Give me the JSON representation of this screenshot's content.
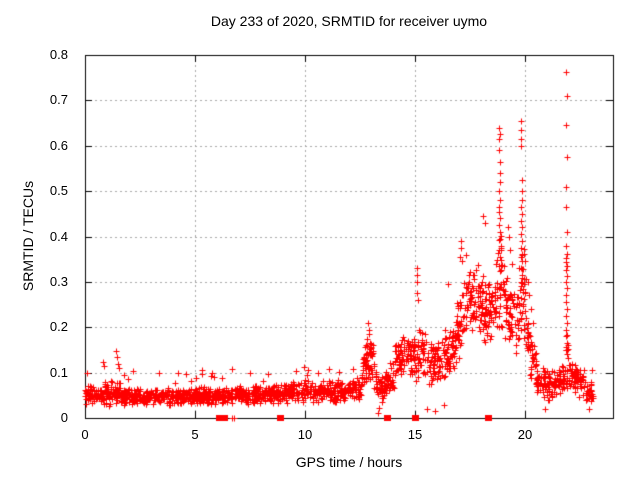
{
  "chart_data": {
    "type": "scatter",
    "title": "Day 233 of 2020, SRMTID for receiver uymo",
    "xlabel": "GPS time / hours",
    "ylabel": "SRMTID / TECUs",
    "xlim": [
      0,
      24
    ],
    "ylim": [
      0,
      0.8
    ],
    "xticks": [
      {
        "value": 0,
        "label": "0"
      },
      {
        "value": 5,
        "label": "5"
      },
      {
        "value": 10,
        "label": "10"
      },
      {
        "value": 15,
        "label": "15"
      },
      {
        "value": 20,
        "label": "20"
      }
    ],
    "yticks": [
      {
        "value": 0.0,
        "label": "0"
      },
      {
        "value": 0.1,
        "label": "0.1"
      },
      {
        "value": 0.2,
        "label": "0.2"
      },
      {
        "value": 0.3,
        "label": "0.3"
      },
      {
        "value": 0.4,
        "label": "0.4"
      },
      {
        "value": 0.5,
        "label": "0.5"
      },
      {
        "value": 0.6,
        "label": "0.6"
      },
      {
        "value": 0.7,
        "label": "0.7"
      },
      {
        "value": 0.8,
        "label": "0.8"
      }
    ],
    "grid": true,
    "legend": "none",
    "marker": {
      "shape": "plus",
      "color": "#ff0000",
      "size": 7
    },
    "grid_color": "#a8a8a8",
    "frame_color": "#000000",
    "text_color": "#000000",
    "seed": 233,
    "band_segments": [
      [
        0.0,
        0.85,
        0.052,
        0.052,
        0.02,
        85
      ],
      [
        0.85,
        1.65,
        0.055,
        0.055,
        0.028,
        85
      ],
      [
        1.65,
        3.0,
        0.048,
        0.045,
        0.018,
        85
      ],
      [
        3.0,
        6.0,
        0.047,
        0.05,
        0.019,
        85
      ],
      [
        6.0,
        9.0,
        0.05,
        0.052,
        0.02,
        85
      ],
      [
        9.0,
        10.4,
        0.055,
        0.06,
        0.023,
        85
      ],
      [
        10.4,
        12.55,
        0.058,
        0.062,
        0.024,
        85
      ],
      [
        12.55,
        12.95,
        0.095,
        0.135,
        0.045,
        90
      ],
      [
        12.95,
        13.25,
        0.135,
        0.09,
        0.045,
        90
      ],
      [
        13.25,
        13.6,
        0.065,
        0.06,
        0.03,
        85
      ],
      [
        13.6,
        14.05,
        0.07,
        0.1,
        0.035,
        85
      ],
      [
        14.05,
        14.55,
        0.125,
        0.15,
        0.05,
        90
      ],
      [
        14.55,
        15.05,
        0.145,
        0.125,
        0.045,
        90
      ],
      [
        15.05,
        15.45,
        0.14,
        0.15,
        0.055,
        90
      ],
      [
        15.45,
        16.15,
        0.13,
        0.125,
        0.05,
        90
      ],
      [
        16.15,
        16.85,
        0.13,
        0.16,
        0.055,
        90
      ],
      [
        16.85,
        17.55,
        0.185,
        0.26,
        0.07,
        92
      ],
      [
        17.55,
        18.35,
        0.27,
        0.25,
        0.085,
        95
      ],
      [
        18.35,
        18.72,
        0.23,
        0.27,
        0.07,
        92
      ],
      [
        18.72,
        19.06,
        0.31,
        0.3,
        0.11,
        100
      ],
      [
        19.06,
        19.62,
        0.25,
        0.2,
        0.075,
        92
      ],
      [
        19.62,
        20.06,
        0.27,
        0.26,
        0.11,
        100
      ],
      [
        20.06,
        20.5,
        0.17,
        0.11,
        0.05,
        88
      ],
      [
        20.5,
        21.2,
        0.085,
        0.07,
        0.032,
        85
      ],
      [
        21.2,
        21.82,
        0.07,
        0.09,
        0.033,
        85
      ],
      [
        21.82,
        21.98,
        0.13,
        0.12,
        0.06,
        95
      ],
      [
        21.98,
        22.75,
        0.09,
        0.078,
        0.034,
        85
      ],
      [
        22.75,
        23.1,
        0.062,
        0.052,
        0.024,
        85
      ]
    ],
    "extra_points": [
      [
        0.1,
        0.1
      ],
      [
        0.82,
        0.124
      ],
      [
        0.87,
        0.114
      ],
      [
        1.42,
        0.148
      ],
      [
        1.46,
        0.134
      ],
      [
        1.51,
        0.12
      ],
      [
        1.56,
        0.11
      ],
      [
        2.2,
        0.104
      ],
      [
        3.35,
        0.1
      ],
      [
        4.6,
        0.098
      ],
      [
        5.3,
        0.105
      ],
      [
        6.7,
        0.108
      ],
      [
        7.5,
        0.1
      ],
      [
        8.3,
        0.098
      ],
      [
        9.6,
        0.104
      ],
      [
        9.95,
        0.112
      ],
      [
        10.15,
        0.106
      ],
      [
        10.6,
        0.1
      ],
      [
        11.1,
        0.108
      ],
      [
        11.55,
        0.102
      ],
      [
        12.2,
        0.108
      ],
      [
        12.78,
        0.16
      ],
      [
        12.82,
        0.175
      ],
      [
        12.86,
        0.21
      ],
      [
        12.89,
        0.195
      ],
      [
        12.92,
        0.185
      ],
      [
        12.96,
        0.165
      ],
      [
        13.0,
        0.155
      ],
      [
        13.3,
        0.012
      ],
      [
        13.38,
        0.022
      ],
      [
        15.07,
        0.33
      ],
      [
        15.09,
        0.315
      ],
      [
        15.11,
        0.3
      ],
      [
        15.08,
        0.275
      ],
      [
        15.12,
        0.26
      ],
      [
        15.55,
        0.02
      ],
      [
        15.92,
        0.016
      ],
      [
        16.3,
        0.028
      ],
      [
        16.5,
        0.295
      ],
      [
        17.05,
        0.355
      ],
      [
        17.08,
        0.39
      ],
      [
        17.11,
        0.375
      ],
      [
        17.14,
        0.345
      ],
      [
        17.32,
        0.36
      ],
      [
        18.08,
        0.445
      ],
      [
        18.2,
        0.43
      ],
      [
        18.8,
        0.455
      ],
      [
        18.82,
        0.64
      ],
      [
        18.83,
        0.615
      ],
      [
        18.84,
        0.59
      ],
      [
        18.85,
        0.625
      ],
      [
        18.86,
        0.565
      ],
      [
        18.87,
        0.54
      ],
      [
        18.88,
        0.52
      ],
      [
        18.84,
        0.5
      ],
      [
        18.86,
        0.48
      ],
      [
        18.82,
        0.465
      ],
      [
        18.88,
        0.44
      ],
      [
        18.83,
        0.425
      ],
      [
        18.87,
        0.41
      ],
      [
        18.85,
        0.395
      ],
      [
        18.89,
        0.38
      ],
      [
        18.81,
        0.37
      ],
      [
        18.86,
        0.355
      ],
      [
        19.22,
        0.42
      ],
      [
        19.28,
        0.4
      ],
      [
        19.34,
        0.37
      ],
      [
        19.4,
        0.34
      ],
      [
        19.8,
        0.655
      ],
      [
        19.82,
        0.635
      ],
      [
        19.84,
        0.615
      ],
      [
        19.83,
        0.6
      ],
      [
        19.86,
        0.525
      ],
      [
        19.85,
        0.5
      ],
      [
        19.87,
        0.48
      ],
      [
        19.82,
        0.465
      ],
      [
        19.88,
        0.45
      ],
      [
        19.84,
        0.435
      ],
      [
        19.86,
        0.42
      ],
      [
        19.81,
        0.405
      ],
      [
        19.87,
        0.39
      ],
      [
        19.83,
        0.375
      ],
      [
        19.85,
        0.36
      ],
      [
        19.88,
        0.345
      ],
      [
        19.82,
        0.33
      ],
      [
        19.86,
        0.315
      ],
      [
        19.84,
        0.3
      ],
      [
        20.15,
        0.3
      ],
      [
        20.2,
        0.27
      ],
      [
        20.28,
        0.24
      ],
      [
        20.35,
        0.21
      ],
      [
        20.9,
        0.02
      ],
      [
        21.87,
        0.762
      ],
      [
        21.89,
        0.71
      ],
      [
        21.88,
        0.645
      ],
      [
        21.9,
        0.575
      ],
      [
        21.86,
        0.51
      ],
      [
        21.88,
        0.465
      ],
      [
        21.89,
        0.41
      ],
      [
        21.87,
        0.378
      ],
      [
        21.9,
        0.362
      ],
      [
        21.88,
        0.352
      ],
      [
        21.86,
        0.344
      ],
      [
        21.91,
        0.335
      ],
      [
        21.88,
        0.326
      ],
      [
        21.89,
        0.312
      ],
      [
        21.87,
        0.3
      ],
      [
        21.9,
        0.286
      ],
      [
        21.88,
        0.27
      ],
      [
        21.86,
        0.255
      ],
      [
        21.89,
        0.24
      ],
      [
        21.88,
        0.225
      ],
      [
        21.9,
        0.21
      ],
      [
        21.87,
        0.195
      ],
      [
        21.88,
        0.18
      ],
      [
        21.89,
        0.165
      ],
      [
        21.87,
        0.15
      ],
      [
        22.9,
        0.02
      ]
    ],
    "zero_points": [
      {
        "x": 6.08,
        "style": "block"
      },
      {
        "x": 6.34,
        "style": "block"
      },
      {
        "x": 6.7,
        "style": "plus"
      },
      {
        "x": 6.78,
        "style": "plus"
      },
      {
        "x": 8.88,
        "style": "block"
      },
      {
        "x": 13.73,
        "style": "block"
      },
      {
        "x": 15.02,
        "style": "block"
      },
      {
        "x": 18.33,
        "style": "block"
      }
    ]
  }
}
